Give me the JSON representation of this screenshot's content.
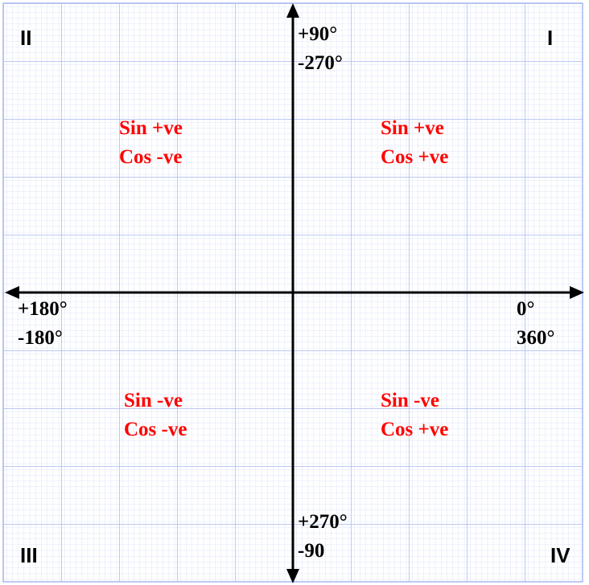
{
  "quadrants": {
    "q1": {
      "numeral": "I",
      "sin": "Sin +ve",
      "cos": "Cos +ve"
    },
    "q2": {
      "numeral": "II",
      "sin": "Sin +ve",
      "cos": "Cos -ve"
    },
    "q3": {
      "numeral": "III",
      "sin": "Sin -ve",
      "cos": "Cos -ve"
    },
    "q4": {
      "numeral": "IV",
      "sin": "Sin -ve",
      "cos": "Cos +ve"
    }
  },
  "axes": {
    "top": [
      "+90°",
      "-270°"
    ],
    "left": [
      "+180°",
      "-180°"
    ],
    "right": [
      "0°",
      "360°"
    ],
    "bottom": [
      "+270°",
      "-90"
    ]
  },
  "colors": {
    "grid_major": "#a9b9ef",
    "grid_minor": "#dde4fa",
    "axis": "#000000",
    "sign_text": "#ff0000"
  }
}
